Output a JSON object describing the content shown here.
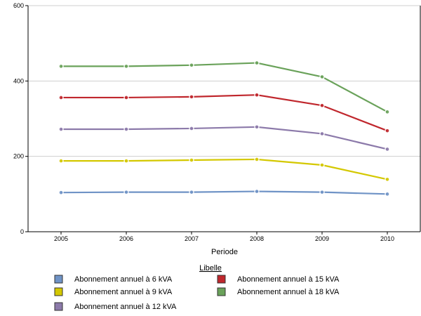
{
  "chart_data": {
    "type": "line",
    "title": "",
    "xlabel": "Periode",
    "ylabel": "",
    "categories": [
      "2005",
      "2006",
      "2007",
      "2008",
      "2009",
      "2010"
    ],
    "ylim": [
      0,
      600
    ],
    "yticks": [
      0,
      200,
      400,
      600
    ],
    "grid": "horizontal",
    "legend": {
      "title": "Libelle",
      "placement": "bottom"
    },
    "series": [
      {
        "name": "Abonnement annuel à 6 kVA",
        "color": "#6f93c6",
        "values": [
          104,
          105,
          105,
          107,
          105,
          100
        ]
      },
      {
        "name": "Abonnement annuel à 9 kVA",
        "color": "#d4c800",
        "values": [
          188,
          188,
          190,
          192,
          177,
          139
        ]
      },
      {
        "name": "Abonnement annuel à 12 kVA",
        "color": "#8c7aaa",
        "values": [
          272,
          272,
          274,
          278,
          260,
          219
        ]
      },
      {
        "name": "Abonnement annuel à 15 kVA",
        "color": "#c0272d",
        "values": [
          356,
          356,
          358,
          363,
          335,
          268
        ]
      },
      {
        "name": "Abonnement annuel à 18 kVA",
        "color": "#6aa25a",
        "values": [
          439,
          439,
          442,
          448,
          411,
          318
        ]
      }
    ]
  }
}
